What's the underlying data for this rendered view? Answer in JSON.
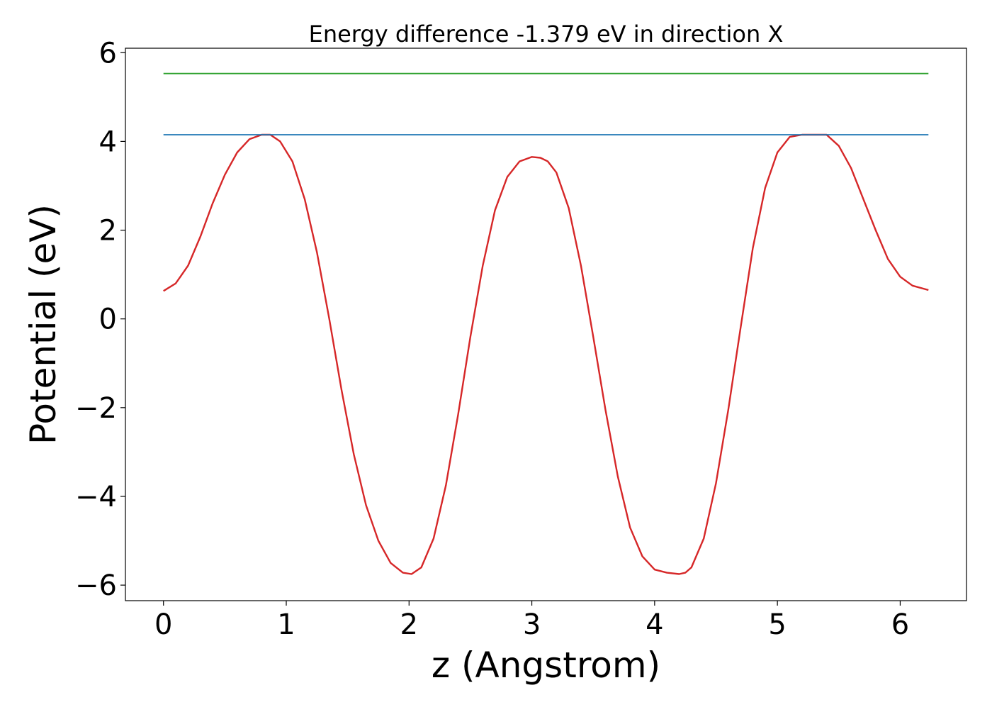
{
  "chart_data": {
    "type": "line",
    "title": "Energy difference -1.379 eV in direction X",
    "xlabel": "z (Angstrom)",
    "ylabel": "Potential (eV)",
    "xlim": [
      -0.31,
      6.54
    ],
    "ylim": [
      -6.35,
      6.1
    ],
    "xticks": [
      0,
      1,
      2,
      3,
      4,
      5,
      6
    ],
    "yticks": [
      -6,
      -4,
      -2,
      0,
      2,
      4,
      6
    ],
    "xtick_labels": [
      "0",
      "1",
      "2",
      "3",
      "4",
      "5",
      "6"
    ],
    "ytick_labels": [
      "−6",
      "−4",
      "−2",
      "0",
      "2",
      "4",
      "6"
    ],
    "grid": false,
    "series": [
      {
        "color": "#d62728",
        "x": [
          0.0,
          0.1,
          0.2,
          0.3,
          0.4,
          0.5,
          0.6,
          0.7,
          0.8,
          0.87,
          0.95,
          1.05,
          1.15,
          1.25,
          1.35,
          1.45,
          1.55,
          1.65,
          1.75,
          1.85,
          1.95,
          2.02,
          2.1,
          2.2,
          2.3,
          2.4,
          2.5,
          2.6,
          2.7,
          2.8,
          2.9,
          3.0,
          3.07,
          3.13,
          3.2,
          3.3,
          3.4,
          3.5,
          3.6,
          3.7,
          3.8,
          3.9,
          4.0,
          4.1,
          4.2,
          4.25,
          4.3,
          4.4,
          4.5,
          4.6,
          4.7,
          4.8,
          4.9,
          5.0,
          5.1,
          5.2,
          5.3,
          5.4,
          5.5,
          5.6,
          5.7,
          5.8,
          5.9,
          6.0,
          6.1,
          6.23
        ],
        "y": [
          0.63,
          0.8,
          1.2,
          1.85,
          2.6,
          3.25,
          3.75,
          4.05,
          4.15,
          4.15,
          4.0,
          3.55,
          2.7,
          1.5,
          0.0,
          -1.6,
          -3.05,
          -4.2,
          -5.0,
          -5.5,
          -5.72,
          -5.75,
          -5.6,
          -4.95,
          -3.75,
          -2.15,
          -0.4,
          1.2,
          2.45,
          3.2,
          3.55,
          3.65,
          3.63,
          3.55,
          3.3,
          2.5,
          1.2,
          -0.4,
          -2.05,
          -3.55,
          -4.7,
          -5.35,
          -5.65,
          -5.72,
          -5.75,
          -5.72,
          -5.6,
          -4.95,
          -3.7,
          -2.05,
          -0.2,
          1.6,
          2.95,
          3.75,
          4.1,
          4.15,
          4.15,
          4.15,
          3.9,
          3.4,
          2.7,
          2.0,
          1.35,
          0.95,
          0.75,
          0.65
        ]
      },
      {
        "color": "#1f77b4",
        "x": [
          0.0,
          6.23
        ],
        "y": [
          4.15,
          4.15
        ]
      },
      {
        "color": "#2ca02c",
        "x": [
          0.0,
          6.23
        ],
        "y": [
          5.53,
          5.53
        ]
      }
    ]
  }
}
